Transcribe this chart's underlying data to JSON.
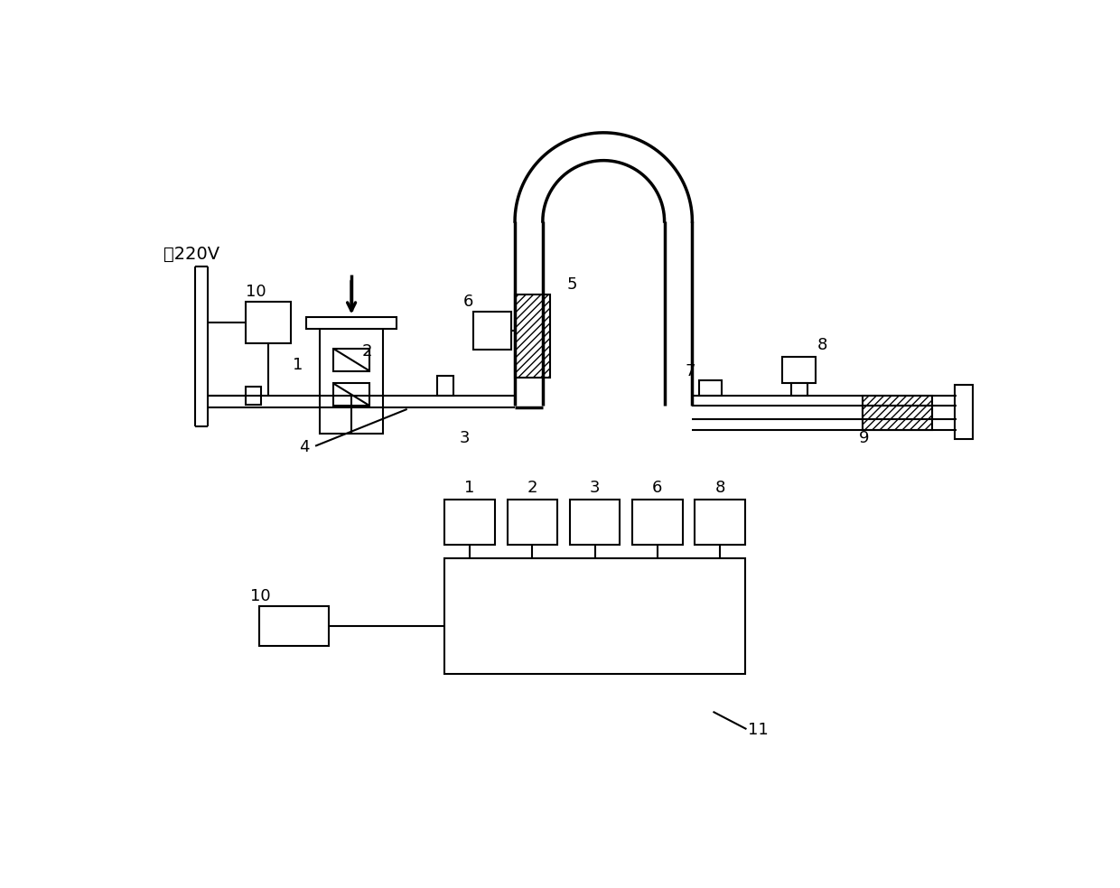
{
  "bg_color": "#ffffff",
  "lc": "#000000",
  "lw_thin": 1.5,
  "lw_thick": 2.5,
  "label_220v": "接220V",
  "fig_w": 12.4,
  "fig_h": 9.83,
  "dpi": 100
}
